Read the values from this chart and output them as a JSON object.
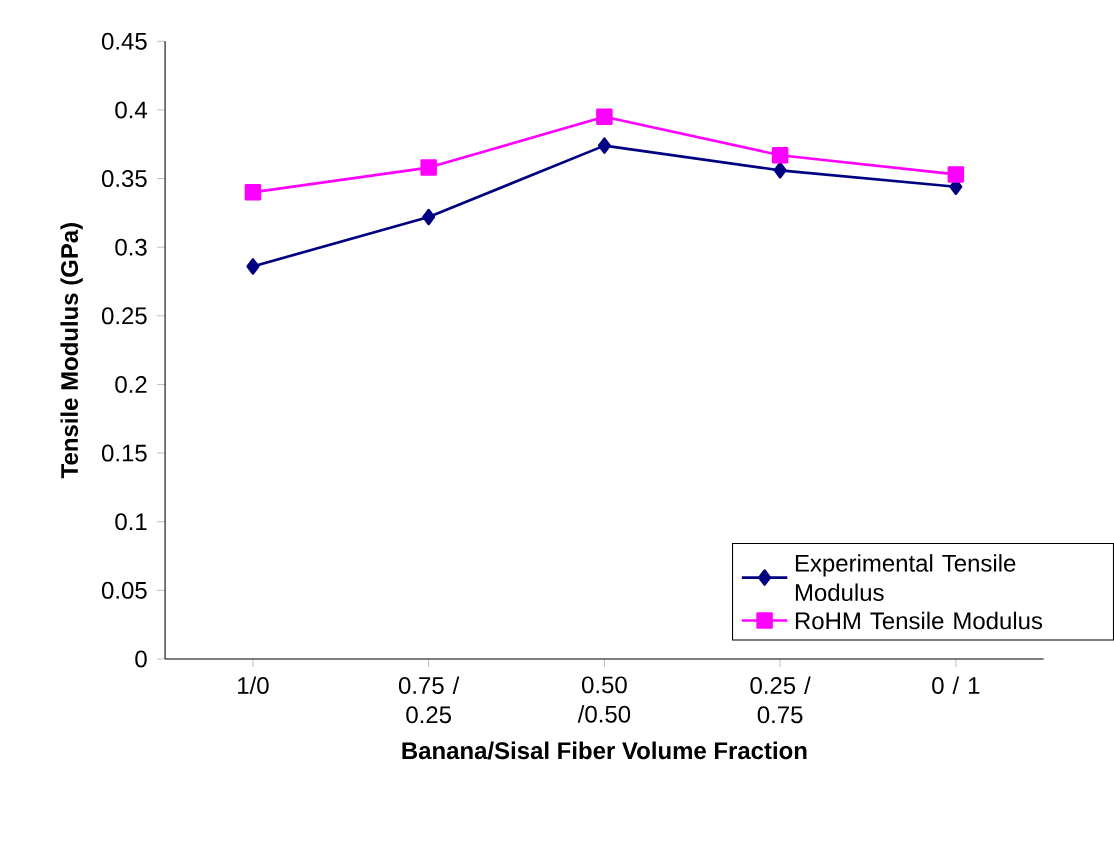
{
  "chart_data": {
    "type": "line",
    "xlabel": "Banana/Sisal Fiber Volume Fraction",
    "ylabel": "Tensile Modulus (GPa)",
    "categories": [
      "1/0",
      "0.75 / 0.25",
      "0.50 /0.50",
      "0.25 / 0.75",
      "0 / 1"
    ],
    "series": [
      {
        "name": "Experimental Tensile Modulus",
        "color": "#000080",
        "marker": "diamond",
        "values": [
          0.286,
          0.322,
          0.374,
          0.356,
          0.344
        ]
      },
      {
        "name": "RoHM Tensile Modulus",
        "color": "#ff00ff",
        "marker": "square",
        "values": [
          0.34,
          0.358,
          0.395,
          0.367,
          0.353
        ]
      }
    ],
    "ylim": [
      0,
      0.45
    ],
    "yticks": [
      0,
      0.05,
      0.1,
      0.15,
      0.2,
      0.25,
      0.3,
      0.35,
      0.4,
      0.45
    ],
    "legend": "bottom right"
  }
}
